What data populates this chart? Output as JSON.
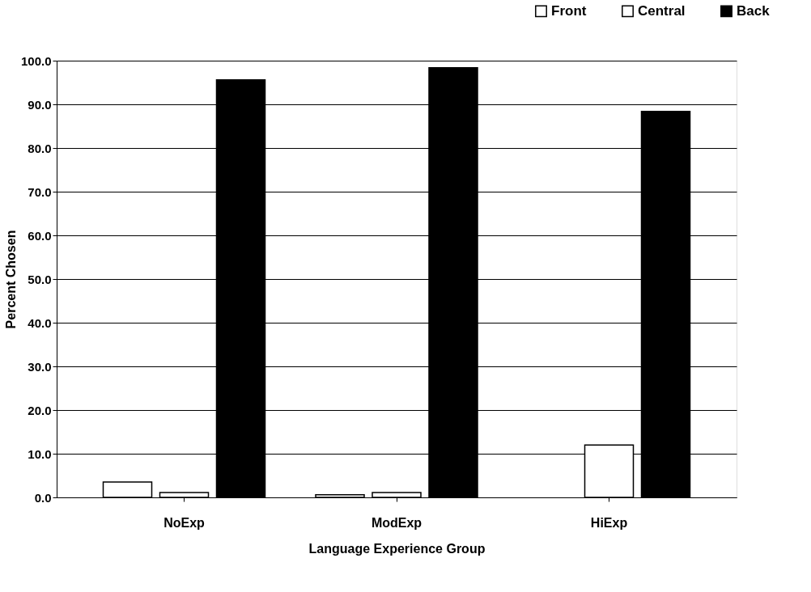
{
  "chart_data": {
    "type": "bar",
    "xlabel": "Language Experience Group",
    "ylabel": "Percent Chosen",
    "categories": [
      "NoExp",
      "ModExp",
      "HiExp"
    ],
    "series": [
      {
        "name": "Front",
        "color": "#ffffff",
        "values": [
          3.5,
          0.6,
          null
        ]
      },
      {
        "name": "Central",
        "color": "#ffffff",
        "values": [
          1.1,
          1.1,
          12.0
        ]
      },
      {
        "name": "Back",
        "color": "#000000",
        "values": [
          95.6,
          98.4,
          88.4
        ]
      }
    ],
    "ylim": [
      0,
      100
    ],
    "yticks": [
      {
        "value": 0,
        "label": "0.0"
      },
      {
        "value": 10,
        "label": "10.0"
      },
      {
        "value": 20,
        "label": "20.0"
      },
      {
        "value": 30,
        "label": "30.0"
      },
      {
        "value": 40,
        "label": "40.0"
      },
      {
        "value": 50,
        "label": "50.0"
      },
      {
        "value": 60,
        "label": "60.0"
      },
      {
        "value": 70,
        "label": "70.0"
      },
      {
        "value": 80,
        "label": "80.0"
      },
      {
        "value": 90,
        "label": "90.0"
      },
      {
        "value": 100,
        "label": "100.0"
      }
    ],
    "grid": "y",
    "legend": "top right"
  }
}
